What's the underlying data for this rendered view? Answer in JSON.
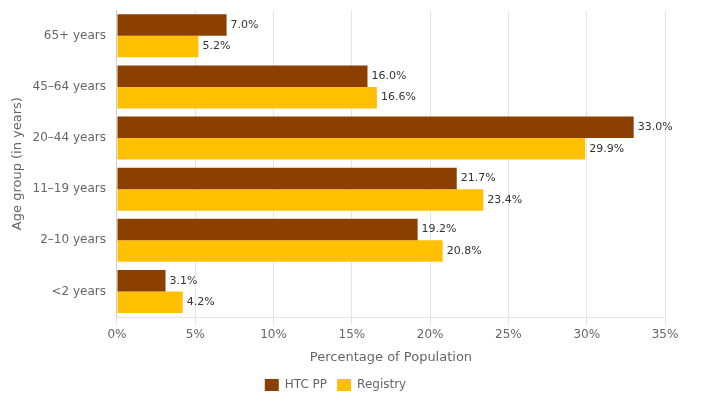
{
  "chart_data": {
    "type": "bar",
    "orientation": "horizontal",
    "categories": [
      "<2 years",
      "2–10 years",
      "11–19 years",
      "20–44 years",
      "45–64 years",
      "65+ years"
    ],
    "series": [
      {
        "name": "HTC PP",
        "color": "#8B4000",
        "values": [
          3.1,
          19.2,
          21.7,
          33.0,
          16.0,
          7.0
        ],
        "value_labels": [
          "3.1%",
          "19.2%",
          "21.7%",
          "33.0%",
          "16.0%",
          "7.0%"
        ]
      },
      {
        "name": "Registry",
        "color": "#FFC000",
        "values": [
          4.2,
          20.8,
          23.4,
          29.9,
          16.6,
          5.2
        ],
        "value_labels": [
          "4.2%",
          "20.8%",
          "23.4%",
          "29.9%",
          "16.6%",
          "5.2%"
        ]
      }
    ],
    "xlabel": "Percentage of Population",
    "ylabel": "Age group (in years)",
    "xlim": [
      0,
      35
    ],
    "xticks": [
      {
        "value": 0,
        "label": "0%"
      },
      {
        "value": 5,
        "label": "5%"
      },
      {
        "value": 10,
        "label": "10%"
      },
      {
        "value": 15,
        "label": "15%"
      },
      {
        "value": 20,
        "label": "20%"
      },
      {
        "value": 25,
        "label": "25%"
      },
      {
        "value": 30,
        "label": "30%"
      },
      {
        "value": 35,
        "label": "35%"
      }
    ],
    "grid": true,
    "legend": "bottom",
    "data_labels": true
  }
}
